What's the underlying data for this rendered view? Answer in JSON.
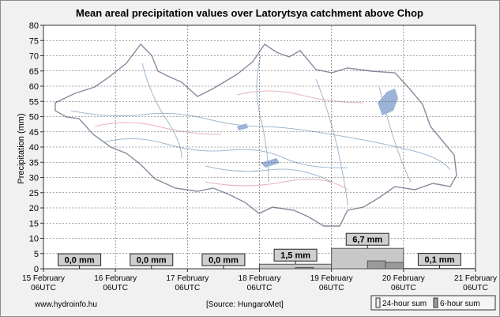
{
  "chart_data": {
    "type": "bar",
    "title": "Mean areal precipitation values over Latorytsya catchment above Chop",
    "ylabel": "Precipitation (mm)",
    "xlabel": "",
    "ylim": [
      0,
      80
    ],
    "yticks": [
      0,
      5,
      10,
      15,
      20,
      25,
      30,
      35,
      40,
      45,
      50,
      55,
      60,
      65,
      70,
      75,
      80
    ],
    "grid": true,
    "x_ticks": [
      {
        "date": "15 February",
        "time": "06UTC"
      },
      {
        "date": "16 February",
        "time": "06UTC"
      },
      {
        "date": "17 February",
        "time": "06UTC"
      },
      {
        "date": "18 February",
        "time": "06UTC"
      },
      {
        "date": "19 February",
        "time": "06UTC"
      },
      {
        "date": "20 February",
        "time": "06UTC"
      },
      {
        "date": "21 February",
        "time": "06UTC"
      }
    ],
    "series": [
      {
        "name": "24-hour sum",
        "values": [
          0.0,
          0.0,
          0.0,
          1.5,
          6.7,
          0.1
        ]
      },
      {
        "name": "6-hour sum",
        "values": [
          0,
          0,
          0,
          0,
          0,
          0,
          0,
          0,
          0,
          0,
          0,
          0,
          0,
          0,
          0.4,
          0,
          0,
          0,
          2.6,
          2.1,
          0,
          0,
          0,
          0
        ]
      }
    ],
    "data_labels": [
      "0,0 mm",
      "0,0 mm",
      "0,0 mm",
      "1,5 mm",
      "6,7 mm",
      "0,1 mm"
    ],
    "legend_placement": "bottom-right"
  },
  "footer": {
    "website": "www.hydroinfo.hu",
    "source": "[Source: HungaroMet]"
  },
  "colors": {
    "bar_fill": "#c8c8c8",
    "bar_stroke": "#555555",
    "bar6_fill": "#9a9a9a",
    "label_fill": "#cfcfcf",
    "grid": "#555555",
    "map_river": "#9fb8d0",
    "map_border": "#8a8aa0",
    "map_lake": "#9ab3d6",
    "map_road": "#e8b0b8"
  }
}
